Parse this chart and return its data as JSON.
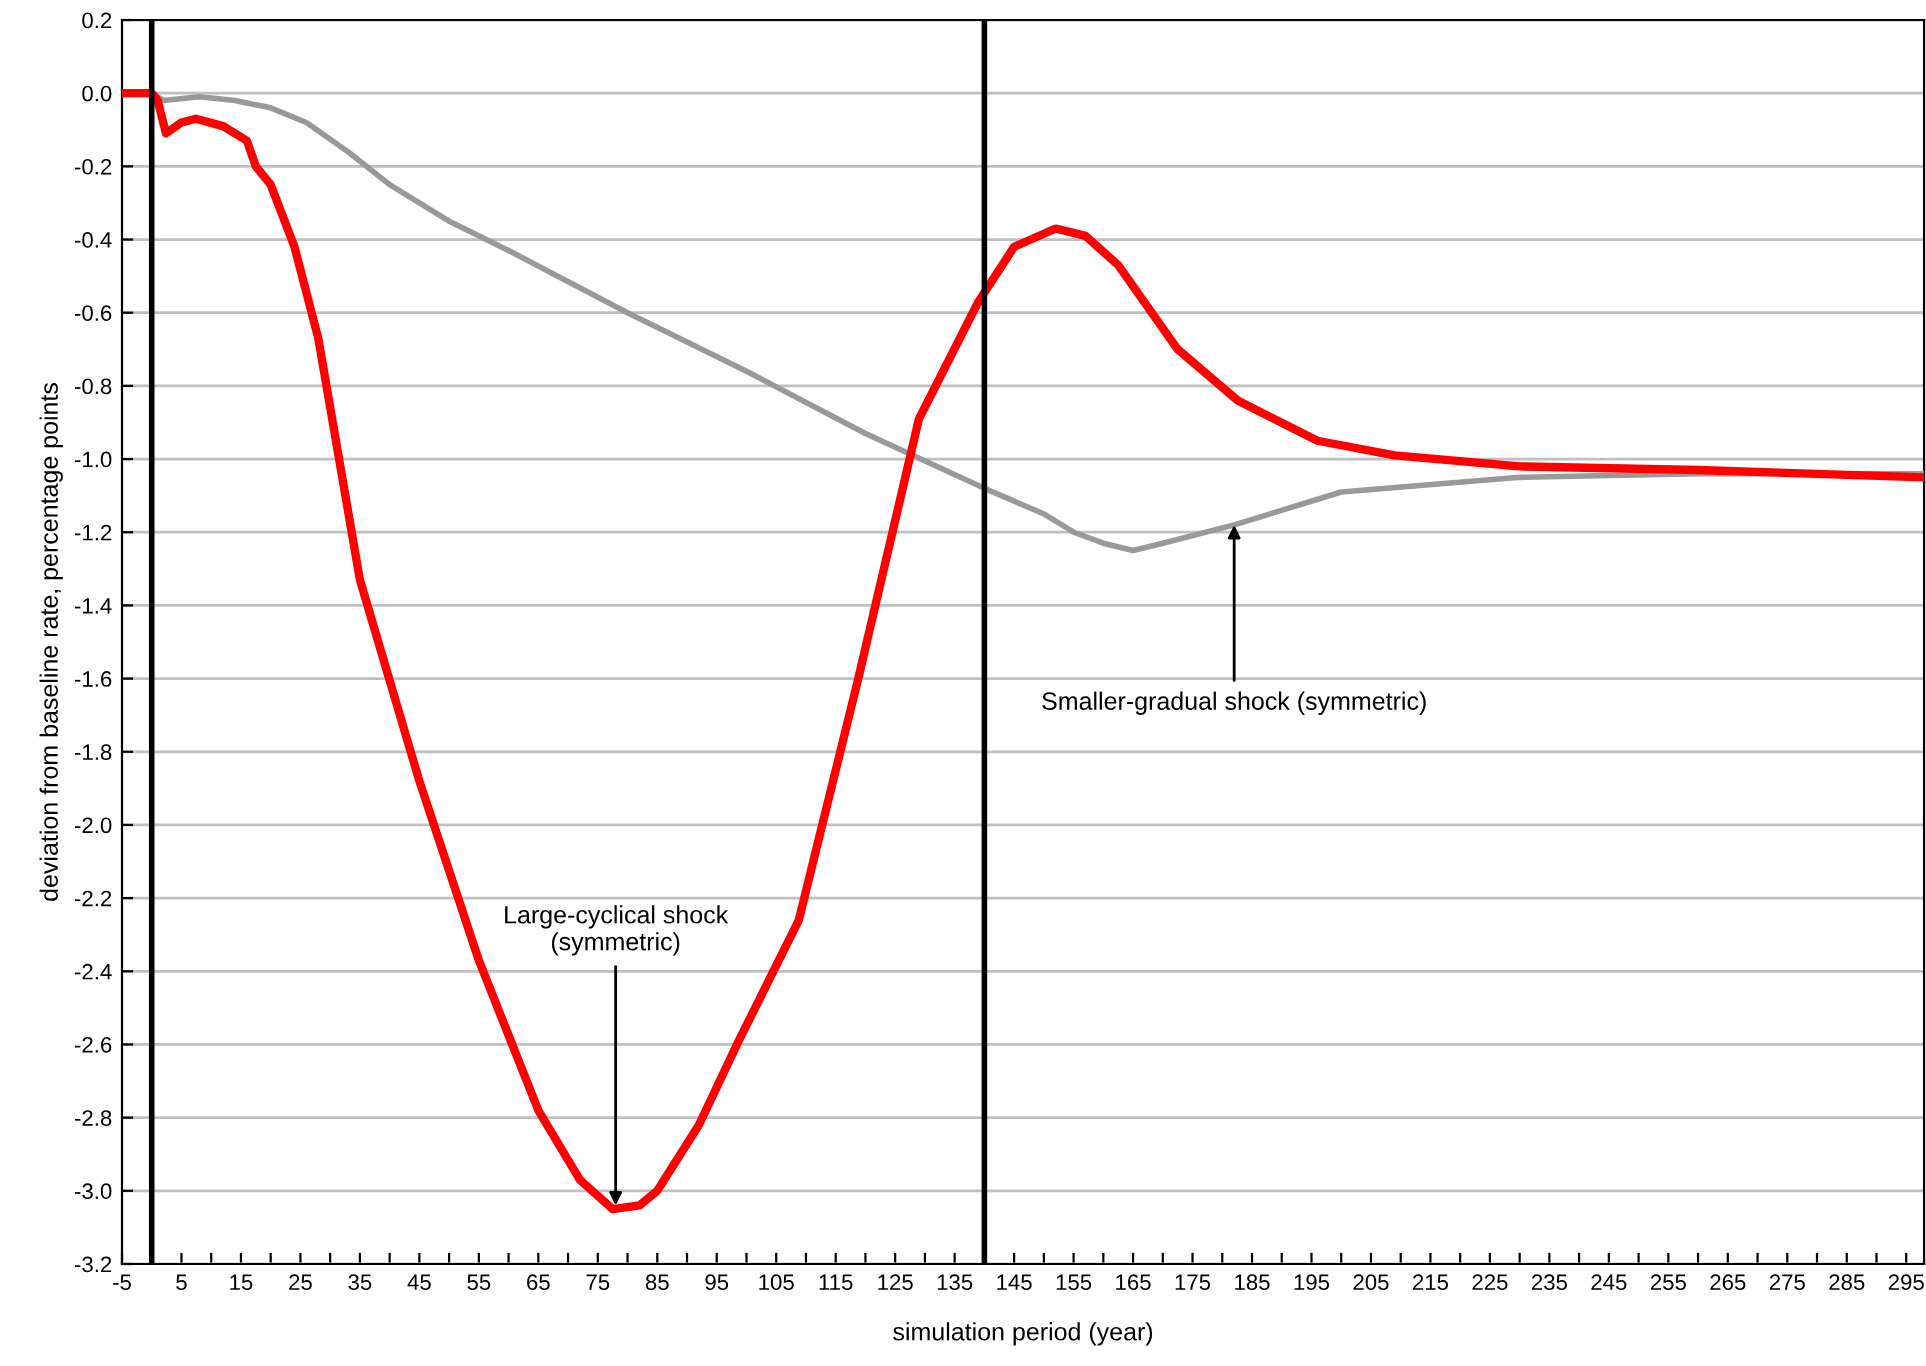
{
  "chart_data": {
    "type": "line",
    "xlabel": "simulation period (year)",
    "ylabel": "deviation from baseline rate, percentage points",
    "xlim": [
      -5,
      298
    ],
    "ylim": [
      -3.2,
      0.2
    ],
    "xticks": [
      -5,
      {
        "value": 0,
        "label": null
      },
      5,
      {
        "value": 10,
        "label": null
      },
      15,
      {
        "value": 20,
        "label": null
      },
      25,
      {
        "value": 30,
        "label": null
      },
      35,
      {
        "value": 40,
        "label": null
      },
      45,
      {
        "value": 50,
        "label": null
      },
      55,
      {
        "value": 60,
        "label": null
      },
      65,
      {
        "value": 70,
        "label": null
      },
      75,
      {
        "value": 80,
        "label": null
      },
      85,
      {
        "value": 90,
        "label": null
      },
      95,
      {
        "value": 100,
        "label": null
      },
      105,
      {
        "value": 110,
        "label": null
      },
      115,
      {
        "value": 120,
        "label": null
      },
      125,
      {
        "value": 130,
        "label": null
      },
      135,
      {
        "value": 140,
        "label": null
      },
      145,
      {
        "value": 150,
        "label": null
      },
      155,
      {
        "value": 160,
        "label": null
      },
      165,
      {
        "value": 170,
        "label": null
      },
      175,
      {
        "value": 180,
        "label": null
      },
      185,
      {
        "value": 190,
        "label": null
      },
      195,
      {
        "value": 200,
        "label": null
      },
      205,
      {
        "value": 210,
        "label": null
      },
      215,
      {
        "value": 220,
        "label": null
      },
      225,
      {
        "value": 230,
        "label": null
      },
      235,
      {
        "value": 240,
        "label": null
      },
      245,
      {
        "value": 250,
        "label": null
      },
      255,
      {
        "value": 260,
        "label": null
      },
      265,
      {
        "value": 270,
        "label": null
      },
      275,
      {
        "value": 280,
        "label": null
      },
      285,
      {
        "value": 290,
        "label": null
      },
      295
    ],
    "yticks": [
      0.2,
      {
        "value": 0,
        "label": "0.0"
      },
      -0.2,
      -0.4,
      -0.6,
      -0.8,
      {
        "value": -1,
        "label": "-1.0"
      },
      -1.2,
      -1.4,
      -1.6,
      -1.8,
      {
        "value": -2,
        "label": "-2.0"
      },
      -2.2,
      -2.4,
      -2.6,
      -2.8,
      {
        "value": -3,
        "label": "-3.0"
      },
      -3.2
    ],
    "grid": "y",
    "legend": false,
    "marker": "none",
    "line_style": "solid",
    "series": [
      {
        "color": "#999999",
        "x": [
          -5,
          0,
          2,
          8,
          14,
          20,
          26,
          33,
          40,
          50,
          60,
          80,
          100,
          120,
          140,
          150,
          155,
          160,
          165,
          170,
          182,
          200,
          230,
          260,
          298
        ],
        "values": [
          0,
          0,
          -0.02,
          -0.01,
          -0.02,
          -0.04,
          -0.08,
          -0.16,
          -0.25,
          -0.35,
          -0.43,
          -0.6,
          -0.76,
          -0.93,
          -1.08,
          -1.15,
          -1.2,
          -1.23,
          -1.25,
          -1.23,
          -1.18,
          -1.09,
          -1.05,
          -1.04,
          -1.04
        ]
      },
      {
        "color": "#ff0000",
        "x": [
          -5,
          0,
          1,
          2.4,
          5,
          7.4,
          12,
          16,
          17.5,
          20,
          24,
          28,
          35,
          45,
          55,
          65,
          72,
          77.5,
          82,
          85,
          92,
          98.7,
          108.8,
          118.8,
          129,
          139,
          145,
          152,
          157,
          162.5,
          172.5,
          182.6,
          196,
          209,
          230,
          260,
          298
        ],
        "values": [
          0,
          0,
          -0.02,
          -0.11,
          -0.08,
          -0.07,
          -0.09,
          -0.13,
          -0.2,
          -0.25,
          -0.42,
          -0.67,
          -1.33,
          -1.88,
          -2.37,
          -2.78,
          -2.97,
          -3.05,
          -3.04,
          -3.0,
          -2.82,
          -2.59,
          -2.26,
          -1.6,
          -0.89,
          -0.57,
          -0.42,
          -0.37,
          -0.39,
          -0.47,
          -0.7,
          -0.84,
          -0.95,
          -0.99,
          -1.02,
          -1.03,
          -1.05
        ]
      }
    ],
    "ref_lines": [
      {
        "axis": "x",
        "value": 0,
        "color": "#000000"
      },
      {
        "axis": "x",
        "value": 140,
        "color": "#000000"
      }
    ],
    "annotations": [
      {
        "text": "Large-cyclical shock\n(symmetric)",
        "x": 78,
        "y": -3.04
      },
      {
        "text": "Smaller-gradual shock (symmetric)",
        "x": 182,
        "y": -1.18
      }
    ]
  }
}
